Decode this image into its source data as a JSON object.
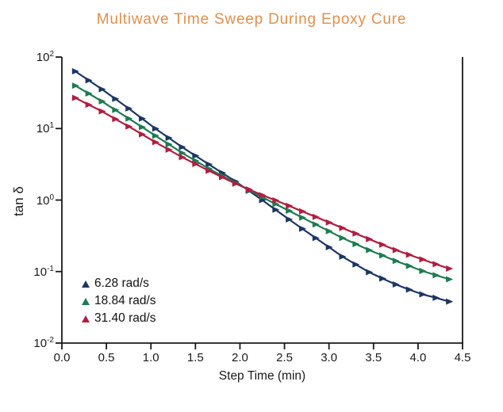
{
  "title": "Multiwave Time Sweep During Epoxy Cure",
  "colors": {
    "title": "#DF904E",
    "axis": "#1a1a1a",
    "series_blue": "#1C3664",
    "series_green": "#1E7B52",
    "series_red": "#B01E42"
  },
  "axes": {
    "x": {
      "label": "Step Time (min)",
      "min": 0.0,
      "max": 4.5,
      "tick_labels": [
        "0.0",
        "0.5",
        "1.0",
        "1.5",
        "2.0",
        "2.5",
        "3.0",
        "3.5",
        "4.0",
        "4.5"
      ]
    },
    "y": {
      "label": "tan δ",
      "scale": "log",
      "tick_labels": [
        {
          "mantissa": "10",
          "exp": "2"
        },
        {
          "mantissa": "10",
          "exp": "1"
        },
        {
          "mantissa": "10",
          "exp": "0"
        },
        {
          "mantissa": "10",
          "exp": "-1"
        },
        {
          "mantissa": "10",
          "exp": "-2"
        }
      ]
    }
  },
  "legend": [
    {
      "label": "6.28 rad/s",
      "color": "#1C3664"
    },
    {
      "label": "18.84 rad/s",
      "color": "#1E7B52"
    },
    {
      "label": "31.40 rad/s",
      "color": "#B01E42"
    }
  ],
  "chart_data": {
    "type": "line",
    "title": "Multiwave Time Sweep During Epoxy Cure",
    "xlabel": "Step Time (min)",
    "ylabel": "tan δ",
    "xlim": [
      0,
      4.5
    ],
    "ylim": [
      0.01,
      100
    ],
    "y_scale": "log",
    "grid": false,
    "legend_position": "lower-left",
    "marker": "right-triangle",
    "x": [
      0.15,
      0.3,
      0.45,
      0.6,
      0.75,
      0.9,
      1.05,
      1.2,
      1.35,
      1.5,
      1.65,
      1.8,
      1.95,
      2.1,
      2.25,
      2.4,
      2.55,
      2.7,
      2.85,
      3.0,
      3.15,
      3.3,
      3.45,
      3.6,
      3.75,
      3.9,
      4.05,
      4.2,
      4.35
    ],
    "series": [
      {
        "name": "6.28 rad/s",
        "color": "#1C3664",
        "values": [
          63.1,
          47.3,
          35.5,
          26.0,
          19.1,
          13.8,
          10.0,
          7.41,
          5.5,
          4.17,
          3.16,
          2.4,
          1.82,
          1.35,
          1.0,
          0.733,
          0.537,
          0.398,
          0.295,
          0.219,
          0.162,
          0.126,
          0.098,
          0.08,
          0.066,
          0.056,
          0.048,
          0.043,
          0.038
        ]
      },
      {
        "name": "18.84 rad/s",
        "color": "#1E7B52",
        "values": [
          39.8,
          30.9,
          24.0,
          18.2,
          13.8,
          10.5,
          7.94,
          6.03,
          4.57,
          3.55,
          2.75,
          2.19,
          1.74,
          1.38,
          1.1,
          0.881,
          0.708,
          0.569,
          0.457,
          0.367,
          0.295,
          0.243,
          0.2,
          0.168,
          0.141,
          0.12,
          0.102,
          0.089,
          0.078
        ]
      },
      {
        "name": "31.40 rad/s",
        "color": "#B01E42",
        "values": [
          26.9,
          21.6,
          17.4,
          13.6,
          10.7,
          8.32,
          6.46,
          5.07,
          3.98,
          3.2,
          2.57,
          2.09,
          1.7,
          1.41,
          1.17,
          0.989,
          0.832,
          0.695,
          0.582,
          0.487,
          0.407,
          0.34,
          0.285,
          0.238,
          0.2,
          0.172,
          0.148,
          0.127,
          0.11
        ]
      }
    ]
  }
}
